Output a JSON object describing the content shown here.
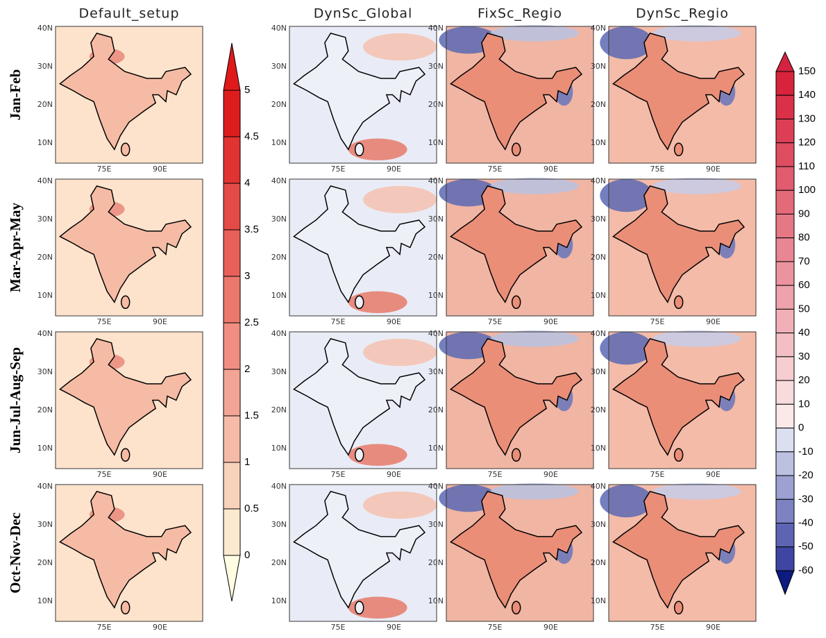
{
  "column_titles": [
    "Default_setup",
    "DynSc_Global",
    "FixSc_Regio",
    "DynSc_Regio"
  ],
  "row_labels": [
    "Jan-Feb",
    "Mar-Apr-May",
    "Jun-Jul-Aug-Sep",
    "Oct-Nov-Dec"
  ],
  "lat_labels": [
    "40N",
    "30N",
    "20N",
    "10N"
  ],
  "lon_labels": [
    "75E",
    "90E"
  ],
  "colorbar_left": [
    "0",
    "0.5",
    "1",
    "1.5",
    "2",
    "2.5",
    "3",
    "3.5",
    "4",
    "4.5",
    "5"
  ],
  "colorbar_right": [
    "150",
    "140",
    "130",
    "120",
    "110",
    "100",
    "90",
    "80",
    "70",
    "60",
    "50",
    "40",
    "30",
    "20",
    "10",
    "0",
    "-10",
    "-20",
    "-30",
    "-40",
    "-50",
    "-60"
  ]
}
